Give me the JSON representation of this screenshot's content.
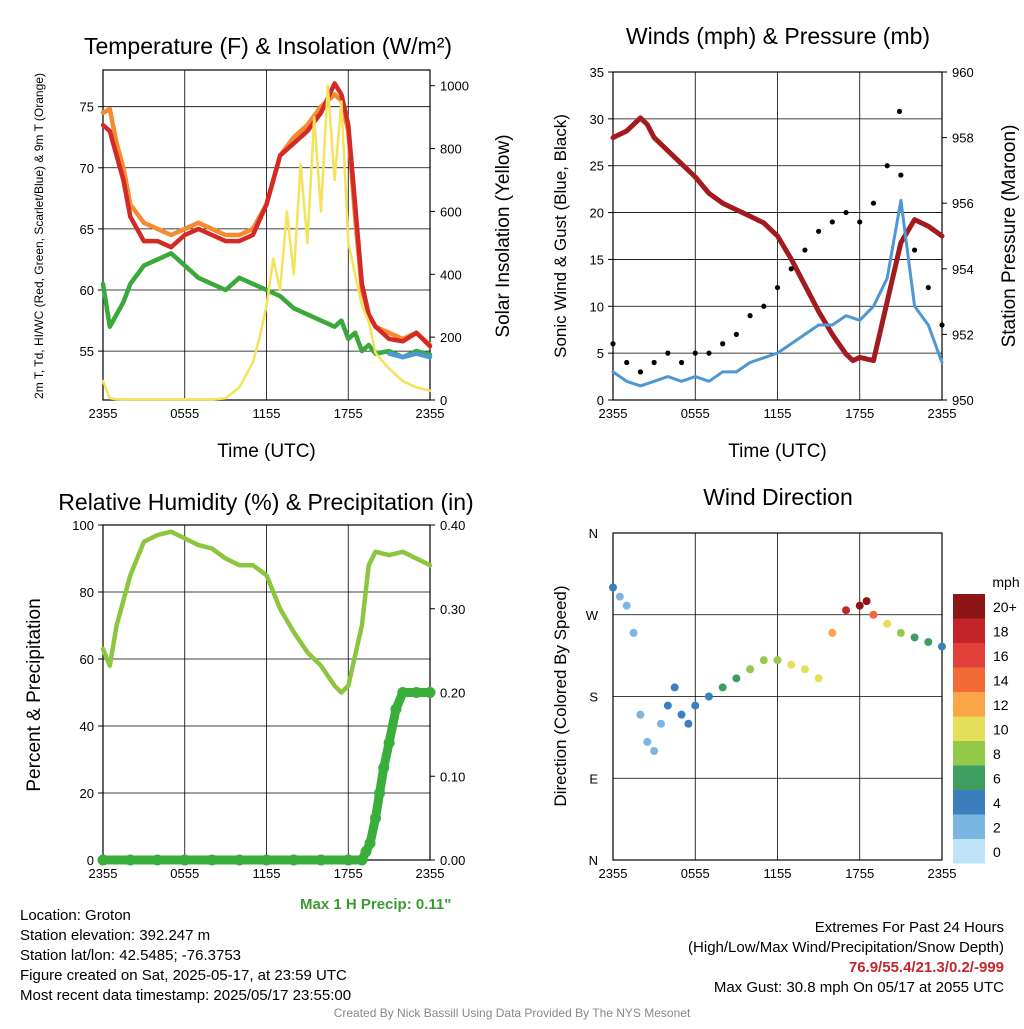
{
  "titles": {
    "temp": "Temperature (F) & Insolation (W/m²)",
    "wind": "Winds (mph) & Pressure (mb)",
    "rh": "Relative Humidity (%) & Precipitation (in)",
    "wdir": "Wind Direction"
  },
  "info": {
    "location": "Location: Groton",
    "elevation": "Station elevation: 392.247 m",
    "latlon": "Station lat/lon: 42.5485; -76.3753",
    "created": "Figure created on Sat, 2025-05-17, at 23:59 UTC",
    "recent": "Most recent data timestamp: 2025/05/17 23:55:00",
    "extremes_title": "Extremes For Past 24 Hours",
    "extremes_sub": "(High/Low/Max Wind/Precipitation/Snow Depth)",
    "extremes_vals": "76.9/55.4/21.3/0.2/-999",
    "max_gust": "Max Gust: 30.8 mph On 05/17 at 2055 UTC",
    "precip_note": "Max 1 H Precip: 0.11\"",
    "credit": "Created By Nick Bassill Using Data Provided By The NYS Mesonet"
  },
  "colors": {
    "red": "#d42a26",
    "orange": "#f58a2e",
    "green": "#3aa83a",
    "yellow": "#f3e25a",
    "blue": "#4d98d3",
    "maroon": "#a31b1f",
    "rh_green": "#8cc63f",
    "precip_green": "#3aae3a"
  },
  "chart_data": [
    {
      "id": "temp",
      "type": "line",
      "title": "Temperature (F) & Insolation (W/m²)",
      "xlabel": "Time (UTC)",
      "ylabel": "2m T, Td, HI/WC (Red, Green, Scarlet/Blue) & 9m T (Orange)",
      "y2label": "Solar Insolation (Yellow)",
      "x_ticks": [
        "2355",
        "0555",
        "1155",
        "1755",
        "2355"
      ],
      "ylim": [
        51,
        78
      ],
      "y_ticks": [
        55,
        60,
        65,
        70,
        75
      ],
      "y2lim": [
        0,
        1050
      ],
      "y2_ticks": [
        0,
        200,
        400,
        600,
        800,
        1000
      ],
      "series": [
        {
          "key": "t9m",
          "color": "#f58a2e",
          "x": [
            0,
            0.5,
            1,
            1.5,
            2,
            3,
            4,
            5,
            6,
            7,
            8,
            9,
            10,
            11,
            12,
            13,
            14,
            15,
            16,
            17,
            17.5,
            18,
            18.5,
            19,
            19.5,
            20,
            21,
            22,
            23,
            24
          ],
          "y": [
            74.5,
            74.8,
            72,
            70,
            67,
            65.5,
            65,
            64.5,
            65,
            65.5,
            65,
            64.5,
            64.5,
            65,
            67,
            71,
            72.5,
            73.5,
            75,
            76,
            75.5,
            73,
            66,
            60,
            58,
            57,
            56.5,
            56,
            56.5,
            55.5
          ]
        },
        {
          "key": "t2m",
          "color": "#d42a26",
          "x": [
            0,
            0.5,
            1,
            1.5,
            2,
            3,
            4,
            5,
            6,
            7,
            8,
            9,
            10,
            11,
            12,
            13,
            14,
            15,
            16,
            17,
            17.5,
            18,
            18.5,
            19,
            19.5,
            20,
            21,
            22,
            23,
            24
          ],
          "y": [
            73.5,
            73,
            71,
            69,
            66,
            64,
            64,
            63.5,
            64.5,
            65,
            64.5,
            64,
            64,
            64.5,
            67,
            71,
            72,
            73,
            74.5,
            76.9,
            76,
            73.5,
            67,
            60.5,
            58,
            57,
            56,
            55.8,
            56.5,
            55.4
          ]
        },
        {
          "key": "td",
          "color": "#3aa83a",
          "x": [
            0,
            0.5,
            1,
            1.5,
            2,
            3,
            4,
            5,
            6,
            7,
            8,
            9,
            10,
            11,
            12,
            13,
            14,
            15,
            16,
            17,
            17.5,
            18,
            18.5,
            19,
            19.5,
            20,
            21,
            22,
            23,
            24
          ],
          "y": [
            60.5,
            57,
            58,
            59,
            60.5,
            62,
            62.5,
            63,
            62,
            61,
            60.5,
            60,
            61,
            60.5,
            60,
            59.5,
            58.5,
            58,
            57.5,
            57,
            57.5,
            56,
            56.5,
            55,
            55.5,
            54.8,
            55,
            54.5,
            55,
            54.7
          ]
        },
        {
          "key": "hiwc",
          "color": "#4d98d3",
          "x": [
            21,
            22,
            23,
            24
          ],
          "y": [
            54.8,
            54.5,
            54.8,
            54.5
          ]
        },
        {
          "key": "solar",
          "axis": "y2",
          "color": "#f3e25a",
          "x": [
            0,
            0.5,
            1,
            2,
            3,
            4,
            5,
            6,
            7,
            8,
            9,
            10,
            11,
            11.5,
            12,
            12.5,
            13,
            13.5,
            14,
            14.5,
            15,
            15.5,
            16,
            16.5,
            17,
            17.5,
            18,
            18.5,
            19,
            19.5,
            20,
            21,
            22,
            23,
            24
          ],
          "y": [
            60,
            5,
            3,
            2,
            2,
            2,
            2,
            2,
            2,
            2,
            5,
            40,
            120,
            200,
            300,
            450,
            350,
            600,
            400,
            750,
            500,
            900,
            600,
            1000,
            700,
            950,
            500,
            400,
            300,
            250,
            150,
            100,
            60,
            40,
            30
          ]
        }
      ]
    },
    {
      "id": "wind",
      "type": "line",
      "title": "Winds (mph) & Pressure (mb)",
      "xlabel": "Time (UTC)",
      "ylabel": "Sonic Wind & Gust (Blue, Black)",
      "y2label": "Station Pressure (Maroon)",
      "x_ticks": [
        "2355",
        "0555",
        "1155",
        "1755",
        "2355"
      ],
      "ylim": [
        0,
        35
      ],
      "y_ticks": [
        0,
        5,
        10,
        15,
        20,
        25,
        30,
        35
      ],
      "y2lim": [
        950,
        960
      ],
      "y2_ticks": [
        950,
        952,
        954,
        956,
        958,
        960
      ],
      "series": [
        {
          "key": "pressure",
          "axis": "y2",
          "color": "#a31b1f",
          "x": [
            0,
            1,
            2,
            2.5,
            3,
            4,
            5,
            6,
            7,
            8,
            9,
            10,
            11,
            12,
            13,
            14,
            15,
            16,
            17,
            17.5,
            18,
            19,
            20,
            21,
            22,
            23,
            24
          ],
          "y": [
            958,
            958.2,
            958.6,
            958.4,
            958,
            957.6,
            957.2,
            956.8,
            956.3,
            956,
            955.8,
            955.6,
            955.4,
            955,
            954.3,
            953.5,
            952.7,
            952,
            951.4,
            951.2,
            951.3,
            951.2,
            953,
            954.8,
            955.5,
            955.3,
            955
          ]
        },
        {
          "key": "wind",
          "color": "#4d98d3",
          "x": [
            0,
            1,
            2,
            3,
            4,
            5,
            6,
            7,
            8,
            9,
            10,
            11,
            12,
            13,
            14,
            15,
            16,
            17,
            18,
            19,
            20,
            21,
            22,
            23,
            24
          ],
          "y": [
            3,
            2,
            1.5,
            2,
            2.5,
            2,
            2.5,
            2,
            3,
            3,
            4,
            4.5,
            5,
            6,
            7,
            8,
            8,
            9,
            8.5,
            10,
            13,
            21.3,
            10,
            8,
            4
          ]
        },
        {
          "key": "gust",
          "color": "#000000",
          "x": [
            0,
            1,
            2,
            3,
            4,
            5,
            6,
            7,
            8,
            9,
            10,
            11,
            12,
            13,
            14,
            15,
            16,
            17,
            18,
            19,
            20,
            20.9,
            21,
            22,
            23,
            24
          ],
          "y": [
            6,
            4,
            3,
            4,
            5,
            4,
            5,
            5,
            6,
            7,
            9,
            10,
            12,
            14,
            16,
            18,
            19,
            20,
            19,
            21,
            25,
            30.8,
            24,
            16,
            12,
            8
          ]
        }
      ]
    },
    {
      "id": "rh",
      "type": "line",
      "title": "Relative Humidity (%) & Precipitation (in)",
      "ylabel": "Percent & Precipitation",
      "x_ticks": [
        "2355",
        "0555",
        "1155",
        "1755",
        "2355"
      ],
      "ylim": [
        0,
        100
      ],
      "y_ticks": [
        0,
        20,
        40,
        60,
        80,
        100
      ],
      "y2lim": [
        0,
        0.4
      ],
      "y2_ticks": [
        "0.00",
        "0.10",
        "0.20",
        "0.30",
        "0.40"
      ],
      "series": [
        {
          "key": "rh",
          "color": "#8cc63f",
          "x": [
            0,
            0.5,
            1,
            2,
            3,
            4,
            5,
            6,
            7,
            8,
            9,
            10,
            11,
            12,
            13,
            14,
            15,
            16,
            17,
            17.5,
            18,
            19,
            19.5,
            20,
            21,
            22,
            23,
            24
          ],
          "y": [
            63,
            58,
            70,
            85,
            95,
            97,
            98,
            96,
            94,
            93,
            90,
            88,
            88,
            85,
            75,
            68,
            62,
            58,
            52,
            50,
            52,
            70,
            88,
            92,
            91,
            92,
            90,
            88
          ]
        },
        {
          "key": "precip",
          "axis": "y2",
          "color": "#3aae3a",
          "x": [
            0,
            2,
            4,
            6,
            8,
            10,
            12,
            14,
            16,
            18,
            19,
            19.3,
            19.6,
            20,
            20.3,
            20.6,
            21,
            21.5,
            22,
            23,
            24
          ],
          "y": [
            0,
            0,
            0,
            0,
            0,
            0,
            0,
            0,
            0,
            0,
            0,
            0.01,
            0.02,
            0.05,
            0.08,
            0.11,
            0.14,
            0.18,
            0.2,
            0.2,
            0.2
          ]
        }
      ]
    },
    {
      "id": "wdir",
      "type": "scatter",
      "title": "Wind Direction",
      "ylabel": "Direction (Colored By Speed)",
      "x_ticks": [
        "2355",
        "0555",
        "1155",
        "1755",
        "2355"
      ],
      "y_ticks": [
        "N",
        "E",
        "S",
        "W",
        "N"
      ],
      "colorbar_title": "mph",
      "colorbar_labels": [
        "20+",
        "18",
        "16",
        "14",
        "12",
        "10",
        "8",
        "6",
        "4",
        "2",
        "0"
      ],
      "colorbar_colors": [
        "#8e1517",
        "#c3242a",
        "#e2403a",
        "#f26a35",
        "#f9a548",
        "#e6df5a",
        "#95c94a",
        "#3e9e62",
        "#3c7fbf",
        "#7bb6e3",
        "#bfe3f7"
      ],
      "points": [
        [
          0,
          300,
          3
        ],
        [
          0.5,
          290,
          2
        ],
        [
          1,
          280,
          2
        ],
        [
          1.5,
          250,
          1
        ],
        [
          2,
          160,
          2
        ],
        [
          2.5,
          130,
          1
        ],
        [
          3,
          120,
          1
        ],
        [
          3.5,
          150,
          2
        ],
        [
          4,
          170,
          3
        ],
        [
          4.5,
          190,
          3
        ],
        [
          5,
          160,
          3
        ],
        [
          5.5,
          150,
          3
        ],
        [
          6,
          170,
          4
        ],
        [
          7,
          180,
          4
        ],
        [
          8,
          190,
          5
        ],
        [
          9,
          200,
          6
        ],
        [
          10,
          210,
          7
        ],
        [
          11,
          220,
          7
        ],
        [
          12,
          220,
          8
        ],
        [
          13,
          215,
          9
        ],
        [
          14,
          210,
          10
        ],
        [
          15,
          200,
          9
        ],
        [
          16,
          250,
          12
        ],
        [
          17,
          275,
          18
        ],
        [
          18,
          280,
          20
        ],
        [
          18.5,
          285,
          19
        ],
        [
          19,
          270,
          14
        ],
        [
          20,
          260,
          10
        ],
        [
          21,
          250,
          8
        ],
        [
          22,
          245,
          6
        ],
        [
          23,
          240,
          5
        ],
        [
          24,
          235,
          4
        ]
      ]
    }
  ]
}
